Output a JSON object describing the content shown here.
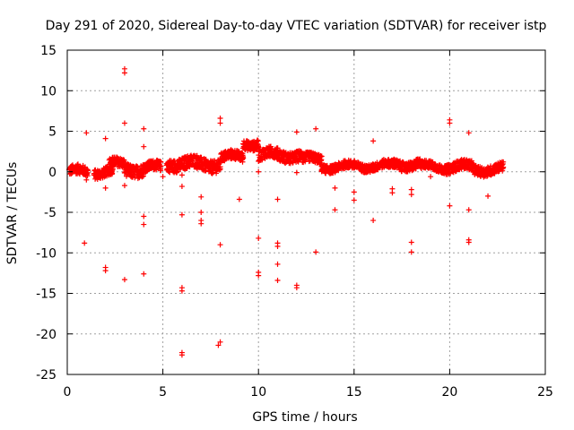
{
  "chart_data": {
    "type": "scatter",
    "title": "Day 291 of 2020, Sidereal Day-to-day VTEC variation (SDTVAR) for receiver istp",
    "xlabel": "GPS time / hours",
    "ylabel": "SDTVAR / TECUs",
    "xlim": [
      0,
      25
    ],
    "ylim": [
      -25,
      15
    ],
    "xticks": [
      0,
      5,
      10,
      15,
      20,
      25
    ],
    "yticks": [
      -25,
      -20,
      -15,
      -10,
      -5,
      0,
      5,
      10,
      15
    ],
    "grid": true,
    "marker": "+",
    "color": "#ff0000",
    "band_segments": [
      {
        "x0": 0.1,
        "x1": 1.1,
        "center": 0.0,
        "spread": 0.6
      },
      {
        "x0": 1.4,
        "x1": 2.4,
        "center": 0.0,
        "spread": 0.6
      },
      {
        "x0": 2.2,
        "x1": 3.0,
        "center": 0.9,
        "spread": 0.6
      },
      {
        "x0": 3.0,
        "x1": 4.0,
        "center": 0.3,
        "spread": 0.8
      },
      {
        "x0": 4.0,
        "x1": 4.9,
        "center": 0.5,
        "spread": 0.6
      },
      {
        "x0": 5.2,
        "x1": 6.8,
        "center": 1.0,
        "spread": 0.8
      },
      {
        "x0": 6.8,
        "x1": 8.0,
        "center": 0.9,
        "spread": 0.8
      },
      {
        "x0": 8.0,
        "x1": 9.2,
        "center": 1.8,
        "spread": 0.6
      },
      {
        "x0": 9.2,
        "x1": 10.0,
        "center": 3.5,
        "spread": 0.6
      },
      {
        "x0": 10.0,
        "x1": 11.0,
        "center": 2.1,
        "spread": 0.7
      },
      {
        "x0": 11.0,
        "x1": 12.3,
        "center": 2.0,
        "spread": 0.7
      },
      {
        "x0": 12.3,
        "x1": 13.3,
        "center": 1.5,
        "spread": 0.6
      },
      {
        "x0": 13.3,
        "x1": 15.0,
        "center": 0.6,
        "spread": 0.5
      },
      {
        "x0": 15.0,
        "x1": 17.0,
        "center": 0.7,
        "spread": 0.5
      },
      {
        "x0": 17.0,
        "x1": 18.5,
        "center": 0.9,
        "spread": 0.6
      },
      {
        "x0": 18.5,
        "x1": 19.8,
        "center": 0.6,
        "spread": 0.5
      },
      {
        "x0": 19.8,
        "x1": 21.2,
        "center": 0.6,
        "spread": 0.6
      },
      {
        "x0": 21.2,
        "x1": 22.8,
        "center": 0.3,
        "spread": 0.6
      }
    ],
    "outliers": [
      {
        "x": 1.0,
        "y": 4.8
      },
      {
        "x": 0.9,
        "y": -8.8
      },
      {
        "x": 1.0,
        "y": -1.0
      },
      {
        "x": 2.0,
        "y": 4.1
      },
      {
        "x": 2.0,
        "y": -11.8
      },
      {
        "x": 2.0,
        "y": -12.2
      },
      {
        "x": 2.0,
        "y": -2.0
      },
      {
        "x": 3.0,
        "y": 12.7
      },
      {
        "x": 3.0,
        "y": 12.2
      },
      {
        "x": 3.0,
        "y": 6.0
      },
      {
        "x": 3.0,
        "y": -13.3
      },
      {
        "x": 3.0,
        "y": -1.7
      },
      {
        "x": 4.0,
        "y": 5.3
      },
      {
        "x": 4.0,
        "y": 3.1
      },
      {
        "x": 4.0,
        "y": -5.5
      },
      {
        "x": 4.0,
        "y": -6.5
      },
      {
        "x": 4.0,
        "y": -12.6
      },
      {
        "x": 5.0,
        "y": -0.6
      },
      {
        "x": 6.0,
        "y": -5.3
      },
      {
        "x": 6.0,
        "y": -14.3
      },
      {
        "x": 6.0,
        "y": -14.7
      },
      {
        "x": 6.0,
        "y": -22.3
      },
      {
        "x": 6.0,
        "y": -22.6
      },
      {
        "x": 6.0,
        "y": -1.8
      },
      {
        "x": 6.0,
        "y": -0.4
      },
      {
        "x": 7.0,
        "y": -3.1
      },
      {
        "x": 7.0,
        "y": -5.0
      },
      {
        "x": 7.0,
        "y": -6.0
      },
      {
        "x": 7.0,
        "y": -6.4
      },
      {
        "x": 8.0,
        "y": 6.6
      },
      {
        "x": 8.0,
        "y": 6.0
      },
      {
        "x": 8.0,
        "y": -9.0
      },
      {
        "x": 8.0,
        "y": -21.0
      },
      {
        "x": 7.9,
        "y": -21.4
      },
      {
        "x": 9.0,
        "y": -3.4
      },
      {
        "x": 10.0,
        "y": -8.2
      },
      {
        "x": 10.0,
        "y": -12.4
      },
      {
        "x": 10.0,
        "y": -12.8
      },
      {
        "x": 10.0,
        "y": 0.0
      },
      {
        "x": 11.0,
        "y": -3.4
      },
      {
        "x": 11.0,
        "y": -8.8
      },
      {
        "x": 11.0,
        "y": -9.2
      },
      {
        "x": 11.0,
        "y": -11.4
      },
      {
        "x": 11.0,
        "y": -13.4
      },
      {
        "x": 12.0,
        "y": 4.9
      },
      {
        "x": 12.0,
        "y": -14.0
      },
      {
        "x": 12.0,
        "y": -14.3
      },
      {
        "x": 12.0,
        "y": -0.1
      },
      {
        "x": 13.0,
        "y": 5.3
      },
      {
        "x": 13.0,
        "y": -9.9
      },
      {
        "x": 14.0,
        "y": -4.7
      },
      {
        "x": 14.0,
        "y": -2.0
      },
      {
        "x": 15.0,
        "y": -2.5
      },
      {
        "x": 15.0,
        "y": -3.5
      },
      {
        "x": 16.0,
        "y": 3.8
      },
      {
        "x": 16.0,
        "y": -6.0
      },
      {
        "x": 17.0,
        "y": -2.1
      },
      {
        "x": 17.0,
        "y": -2.6
      },
      {
        "x": 18.0,
        "y": -2.2
      },
      {
        "x": 18.0,
        "y": -2.8
      },
      {
        "x": 18.0,
        "y": -8.7
      },
      {
        "x": 18.0,
        "y": -9.9
      },
      {
        "x": 19.0,
        "y": -0.6
      },
      {
        "x": 20.0,
        "y": 6.4
      },
      {
        "x": 20.0,
        "y": 6.0
      },
      {
        "x": 20.0,
        "y": -4.2
      },
      {
        "x": 21.0,
        "y": 4.8
      },
      {
        "x": 21.0,
        "y": -4.7
      },
      {
        "x": 21.0,
        "y": -8.4
      },
      {
        "x": 21.0,
        "y": -8.7
      },
      {
        "x": 22.0,
        "y": -3.0
      }
    ]
  }
}
